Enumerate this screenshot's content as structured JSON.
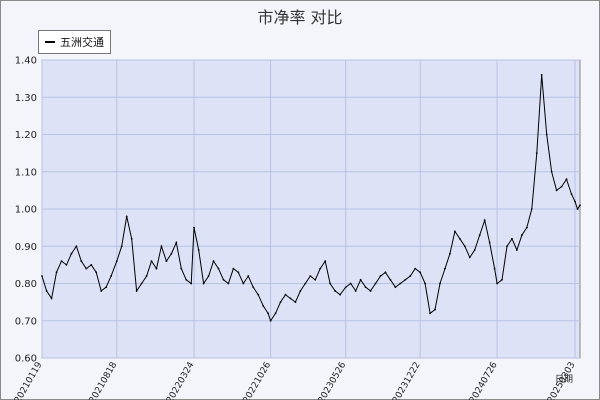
{
  "chart_data": {
    "type": "line",
    "title": "市净率 对比",
    "xlabel": "日期",
    "ylabel": "",
    "ylim": [
      0.6,
      1.4
    ],
    "yticks": [
      "0.60",
      "0.70",
      "0.80",
      "0.90",
      "1.00",
      "1.10",
      "1.20",
      "1.30",
      "1.40"
    ],
    "xticks": [
      "20210119",
      "20210818",
      "20220324",
      "20221026",
      "20230526",
      "20231222",
      "20240726",
      "20250303"
    ],
    "grid": true,
    "legend_position": "top-left",
    "series": [
      {
        "name": "五洲交通",
        "color": "#000000",
        "x": [
          "20210119",
          "20210201",
          "20210215",
          "20210301",
          "20210315",
          "20210329",
          "20210412",
          "20210426",
          "20210510",
          "20210524",
          "20210607",
          "20210621",
          "20210705",
          "20210719",
          "20210802",
          "20210818",
          "20210901",
          "20210915",
          "20210929",
          "20211013",
          "20211027",
          "20211110",
          "20211124",
          "20211208",
          "20211222",
          "20220105",
          "20220119",
          "20220202",
          "20220216",
          "20220302",
          "20220316",
          "20220324",
          "20220406",
          "20220420",
          "20220504",
          "20220518",
          "20220601",
          "20220615",
          "20220629",
          "20220713",
          "20220727",
          "20220810",
          "20220824",
          "20220907",
          "20220921",
          "20221005",
          "20221019",
          "20221026",
          "20221109",
          "20221123",
          "20221207",
          "20221221",
          "20230104",
          "20230118",
          "20230201",
          "20230215",
          "20230301",
          "20230315",
          "20230329",
          "20230412",
          "20230426",
          "20230510",
          "20230526",
          "20230609",
          "20230623",
          "20230707",
          "20230721",
          "20230804",
          "20230818",
          "20230901",
          "20230915",
          "20230929",
          "20231013",
          "20231027",
          "20231110",
          "20231124",
          "20231208",
          "20231222",
          "20240105",
          "20240119",
          "20240202",
          "20240216",
          "20240301",
          "20240315",
          "20240329",
          "20240412",
          "20240426",
          "20240510",
          "20240524",
          "20240607",
          "20240621",
          "20240705",
          "20240719",
          "20240726",
          "20240809",
          "20240823",
          "20240906",
          "20240920",
          "20241004",
          "20241018",
          "20241101",
          "20241115",
          "20241129",
          "20241213",
          "20241227",
          "20250110",
          "20250124",
          "20250207",
          "20250221",
          "20250303",
          "20250310",
          "20250317"
        ],
        "values": [
          0.82,
          0.78,
          0.76,
          0.83,
          0.86,
          0.85,
          0.88,
          0.9,
          0.86,
          0.84,
          0.85,
          0.83,
          0.78,
          0.79,
          0.82,
          0.86,
          0.9,
          0.98,
          0.92,
          0.78,
          0.8,
          0.82,
          0.86,
          0.84,
          0.9,
          0.86,
          0.88,
          0.91,
          0.84,
          0.81,
          0.8,
          0.95,
          0.89,
          0.8,
          0.82,
          0.86,
          0.84,
          0.81,
          0.8,
          0.84,
          0.83,
          0.8,
          0.82,
          0.79,
          0.77,
          0.74,
          0.72,
          0.7,
          0.72,
          0.75,
          0.77,
          0.76,
          0.75,
          0.78,
          0.8,
          0.82,
          0.81,
          0.84,
          0.86,
          0.8,
          0.78,
          0.77,
          0.79,
          0.8,
          0.78,
          0.81,
          0.79,
          0.78,
          0.8,
          0.82,
          0.83,
          0.81,
          0.79,
          0.8,
          0.81,
          0.82,
          0.84,
          0.83,
          0.8,
          0.72,
          0.73,
          0.8,
          0.84,
          0.88,
          0.94,
          0.92,
          0.9,
          0.87,
          0.89,
          0.93,
          0.97,
          0.91,
          0.84,
          0.8,
          0.81,
          0.9,
          0.92,
          0.89,
          0.93,
          0.95,
          1.0,
          1.15,
          1.36,
          1.2,
          1.1,
          1.05,
          1.06,
          1.08,
          1.04,
          1.02,
          1.0,
          1.01
        ]
      }
    ]
  }
}
